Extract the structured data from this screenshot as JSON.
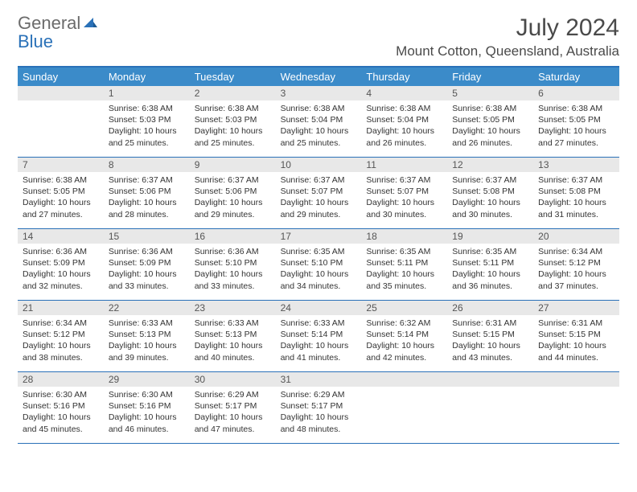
{
  "brand": {
    "general": "General",
    "blue": "Blue"
  },
  "title": "July 2024",
  "location": "Mount Cotton, Queensland, Australia",
  "colors": {
    "headerBg": "#3b8bc9",
    "border": "#2a71b8",
    "dateRowBg": "#e8e8e8",
    "text": "#333333",
    "logoGray": "#6b6b6b",
    "logoBlue": "#2a71b8"
  },
  "dayNames": [
    "Sunday",
    "Monday",
    "Tuesday",
    "Wednesday",
    "Thursday",
    "Friday",
    "Saturday"
  ],
  "weeks": [
    [
      {
        "date": ""
      },
      {
        "date": "1",
        "sunrise": "Sunrise: 6:38 AM",
        "sunset": "Sunset: 5:03 PM",
        "daylight": "Daylight: 10 hours and 25 minutes."
      },
      {
        "date": "2",
        "sunrise": "Sunrise: 6:38 AM",
        "sunset": "Sunset: 5:03 PM",
        "daylight": "Daylight: 10 hours and 25 minutes."
      },
      {
        "date": "3",
        "sunrise": "Sunrise: 6:38 AM",
        "sunset": "Sunset: 5:04 PM",
        "daylight": "Daylight: 10 hours and 25 minutes."
      },
      {
        "date": "4",
        "sunrise": "Sunrise: 6:38 AM",
        "sunset": "Sunset: 5:04 PM",
        "daylight": "Daylight: 10 hours and 26 minutes."
      },
      {
        "date": "5",
        "sunrise": "Sunrise: 6:38 AM",
        "sunset": "Sunset: 5:05 PM",
        "daylight": "Daylight: 10 hours and 26 minutes."
      },
      {
        "date": "6",
        "sunrise": "Sunrise: 6:38 AM",
        "sunset": "Sunset: 5:05 PM",
        "daylight": "Daylight: 10 hours and 27 minutes."
      }
    ],
    [
      {
        "date": "7",
        "sunrise": "Sunrise: 6:38 AM",
        "sunset": "Sunset: 5:05 PM",
        "daylight": "Daylight: 10 hours and 27 minutes."
      },
      {
        "date": "8",
        "sunrise": "Sunrise: 6:37 AM",
        "sunset": "Sunset: 5:06 PM",
        "daylight": "Daylight: 10 hours and 28 minutes."
      },
      {
        "date": "9",
        "sunrise": "Sunrise: 6:37 AM",
        "sunset": "Sunset: 5:06 PM",
        "daylight": "Daylight: 10 hours and 29 minutes."
      },
      {
        "date": "10",
        "sunrise": "Sunrise: 6:37 AM",
        "sunset": "Sunset: 5:07 PM",
        "daylight": "Daylight: 10 hours and 29 minutes."
      },
      {
        "date": "11",
        "sunrise": "Sunrise: 6:37 AM",
        "sunset": "Sunset: 5:07 PM",
        "daylight": "Daylight: 10 hours and 30 minutes."
      },
      {
        "date": "12",
        "sunrise": "Sunrise: 6:37 AM",
        "sunset": "Sunset: 5:08 PM",
        "daylight": "Daylight: 10 hours and 30 minutes."
      },
      {
        "date": "13",
        "sunrise": "Sunrise: 6:37 AM",
        "sunset": "Sunset: 5:08 PM",
        "daylight": "Daylight: 10 hours and 31 minutes."
      }
    ],
    [
      {
        "date": "14",
        "sunrise": "Sunrise: 6:36 AM",
        "sunset": "Sunset: 5:09 PM",
        "daylight": "Daylight: 10 hours and 32 minutes."
      },
      {
        "date": "15",
        "sunrise": "Sunrise: 6:36 AM",
        "sunset": "Sunset: 5:09 PM",
        "daylight": "Daylight: 10 hours and 33 minutes."
      },
      {
        "date": "16",
        "sunrise": "Sunrise: 6:36 AM",
        "sunset": "Sunset: 5:10 PM",
        "daylight": "Daylight: 10 hours and 33 minutes."
      },
      {
        "date": "17",
        "sunrise": "Sunrise: 6:35 AM",
        "sunset": "Sunset: 5:10 PM",
        "daylight": "Daylight: 10 hours and 34 minutes."
      },
      {
        "date": "18",
        "sunrise": "Sunrise: 6:35 AM",
        "sunset": "Sunset: 5:11 PM",
        "daylight": "Daylight: 10 hours and 35 minutes."
      },
      {
        "date": "19",
        "sunrise": "Sunrise: 6:35 AM",
        "sunset": "Sunset: 5:11 PM",
        "daylight": "Daylight: 10 hours and 36 minutes."
      },
      {
        "date": "20",
        "sunrise": "Sunrise: 6:34 AM",
        "sunset": "Sunset: 5:12 PM",
        "daylight": "Daylight: 10 hours and 37 minutes."
      }
    ],
    [
      {
        "date": "21",
        "sunrise": "Sunrise: 6:34 AM",
        "sunset": "Sunset: 5:12 PM",
        "daylight": "Daylight: 10 hours and 38 minutes."
      },
      {
        "date": "22",
        "sunrise": "Sunrise: 6:33 AM",
        "sunset": "Sunset: 5:13 PM",
        "daylight": "Daylight: 10 hours and 39 minutes."
      },
      {
        "date": "23",
        "sunrise": "Sunrise: 6:33 AM",
        "sunset": "Sunset: 5:13 PM",
        "daylight": "Daylight: 10 hours and 40 minutes."
      },
      {
        "date": "24",
        "sunrise": "Sunrise: 6:33 AM",
        "sunset": "Sunset: 5:14 PM",
        "daylight": "Daylight: 10 hours and 41 minutes."
      },
      {
        "date": "25",
        "sunrise": "Sunrise: 6:32 AM",
        "sunset": "Sunset: 5:14 PM",
        "daylight": "Daylight: 10 hours and 42 minutes."
      },
      {
        "date": "26",
        "sunrise": "Sunrise: 6:31 AM",
        "sunset": "Sunset: 5:15 PM",
        "daylight": "Daylight: 10 hours and 43 minutes."
      },
      {
        "date": "27",
        "sunrise": "Sunrise: 6:31 AM",
        "sunset": "Sunset: 5:15 PM",
        "daylight": "Daylight: 10 hours and 44 minutes."
      }
    ],
    [
      {
        "date": "28",
        "sunrise": "Sunrise: 6:30 AM",
        "sunset": "Sunset: 5:16 PM",
        "daylight": "Daylight: 10 hours and 45 minutes."
      },
      {
        "date": "29",
        "sunrise": "Sunrise: 6:30 AM",
        "sunset": "Sunset: 5:16 PM",
        "daylight": "Daylight: 10 hours and 46 minutes."
      },
      {
        "date": "30",
        "sunrise": "Sunrise: 6:29 AM",
        "sunset": "Sunset: 5:17 PM",
        "daylight": "Daylight: 10 hours and 47 minutes."
      },
      {
        "date": "31",
        "sunrise": "Sunrise: 6:29 AM",
        "sunset": "Sunset: 5:17 PM",
        "daylight": "Daylight: 10 hours and 48 minutes."
      },
      {
        "date": ""
      },
      {
        "date": ""
      },
      {
        "date": ""
      }
    ]
  ]
}
